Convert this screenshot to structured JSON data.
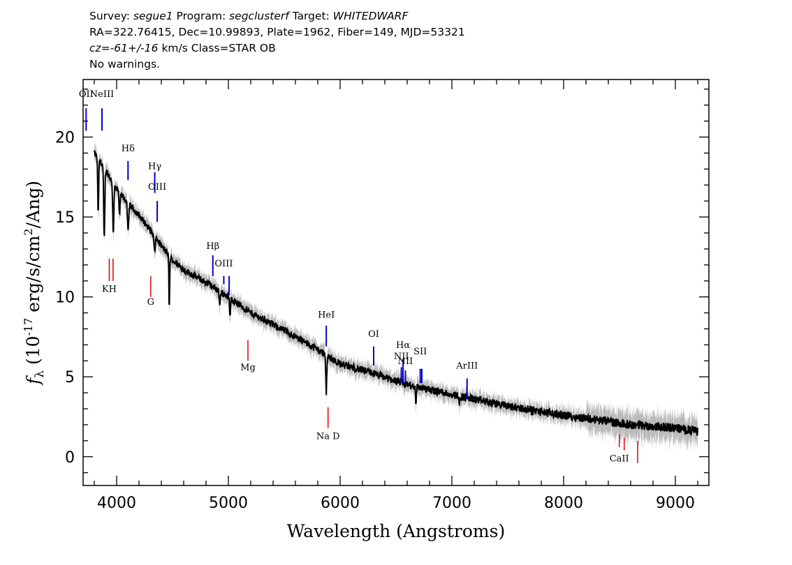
{
  "header": {
    "line1": {
      "survey_label": "Survey: ",
      "survey": "segue1",
      "program_label": " Program: ",
      "program": "segclusterf",
      "target_label": " Target: ",
      "target": "WHITEDWARF"
    },
    "line2": "RA=322.76415, Dec=10.99893, Plate=1962, Fiber=149, MJD=53321",
    "line3": {
      "cz_label": "cz",
      "cz_value": "=-61+/-16",
      "cz_rest": " km/s Class=STAR OB"
    },
    "line4": "No warnings."
  },
  "chart_data": {
    "type": "line",
    "xlabel": "Wavelength (Angstroms)",
    "ylabel": "f_λ (10^-17 erg/s/cm^2/Ang)",
    "ylabel_parts": {
      "f": "f",
      "sub": "λ",
      "a": " (10",
      "b": "-17",
      "c": " erg/s/cm",
      "d": "2",
      "e": "/Ang)"
    },
    "xlim": [
      3700,
      9300
    ],
    "ylim": [
      -1.8,
      23.6
    ],
    "x_ticks": [
      4000,
      5000,
      6000,
      7000,
      8000,
      9000
    ],
    "y_ticks": [
      0,
      5,
      10,
      15,
      20
    ],
    "x_ticklabels": [
      "4000",
      "5000",
      "6000",
      "7000",
      "8000",
      "9000"
    ],
    "y_ticklabels": [
      "0",
      "5",
      "10",
      "15",
      "20"
    ],
    "colors": {
      "flux": "#000000",
      "noise": "#bbbbbb",
      "emission": "#0000cc",
      "absorption": "#dd0000"
    },
    "continuum": {
      "x": [
        3800,
        3850,
        3900,
        3950,
        4000,
        4100,
        4200,
        4300,
        4400,
        4500,
        4600,
        4800,
        5000,
        5200,
        5500,
        5800,
        6000,
        6300,
        6600,
        7000,
        7400,
        7800,
        8200,
        8600,
        9000,
        9200
      ],
      "y": [
        19.0,
        18.5,
        18.0,
        17.3,
        16.7,
        15.9,
        15.1,
        14.2,
        13.2,
        12.3,
        11.7,
        10.9,
        10.0,
        9.0,
        7.9,
        6.7,
        5.8,
        5.2,
        4.5,
        3.9,
        3.3,
        2.8,
        2.4,
        2.0,
        1.8,
        1.6
      ]
    },
    "absorption_features": [
      {
        "x": 3835,
        "depth": 3.5,
        "width": 6
      },
      {
        "x": 3889,
        "depth": 4.5,
        "width": 7
      },
      {
        "x": 3970,
        "depth": 3.0,
        "width": 7
      },
      {
        "x": 4026,
        "depth": 1.5,
        "width": 6
      },
      {
        "x": 4102,
        "depth": 1.8,
        "width": 8
      },
      {
        "x": 4340,
        "depth": 1.0,
        "width": 8
      },
      {
        "x": 4471,
        "depth": 3.3,
        "width": 5
      },
      {
        "x": 4922,
        "depth": 0.9,
        "width": 6
      },
      {
        "x": 5015,
        "depth": 1.2,
        "width": 6
      },
      {
        "x": 5876,
        "depth": 2.4,
        "width": 6
      },
      {
        "x": 6678,
        "depth": 1.0,
        "width": 5
      },
      {
        "x": 7065,
        "depth": 0.4,
        "width": 6
      }
    ],
    "annotations": {
      "emission": [
        {
          "label": "OII",
          "x": 3727,
          "ybot": 20.4,
          "ytop": 21.8,
          "lab_y": 22.5
        },
        {
          "label": "NeIII",
          "x": 3869,
          "ybot": 20.4,
          "ytop": 21.8,
          "lab_y": 22.5
        },
        {
          "label": "Hδ",
          "x": 4102,
          "ybot": 17.3,
          "ytop": 18.5,
          "lab_y": 19.1
        },
        {
          "label": "Hγ",
          "x": 4341,
          "ybot": 16.5,
          "ytop": 17.8,
          "lab_y": 18.0
        },
        {
          "label": "OIII",
          "x": 4363,
          "ybot": 14.7,
          "ytop": 16.0,
          "lab_y": 16.7
        },
        {
          "label": "Hβ",
          "x": 4861,
          "ybot": 11.3,
          "ytop": 12.6,
          "lab_y": 13.0
        },
        {
          "label": "OIII",
          "x": 4959,
          "ybot": 10.8,
          "ytop": 11.3,
          "lab_y": 11.9
        },
        {
          "label": "",
          "x": 5007,
          "ybot": 10.1,
          "ytop": 11.3,
          "lab_y": 0
        },
        {
          "label": "HeI",
          "x": 5876,
          "ybot": 6.9,
          "ytop": 8.2,
          "lab_y": 8.7
        },
        {
          "label": "OI",
          "x": 6300,
          "ybot": 5.7,
          "ytop": 6.9,
          "lab_y": 7.5
        },
        {
          "label": "NII",
          "x": 6548,
          "ybot": 4.6,
          "ytop": 5.6,
          "lab_y": 6.1
        },
        {
          "label": "Hα",
          "x": 6563,
          "ybot": 4.7,
          "ytop": 6.1,
          "lab_y": 6.8
        },
        {
          "label": "NII",
          "x": 6584,
          "ybot": 4.6,
          "ytop": 5.4,
          "lab_y": 5.8
        },
        {
          "label": "SII",
          "x": 6717,
          "ybot": 4.6,
          "ytop": 5.5,
          "lab_y": 6.4
        },
        {
          "label": "",
          "x": 6731,
          "ybot": 4.6,
          "ytop": 5.5,
          "lab_y": 0
        },
        {
          "label": "ArIII",
          "x": 7136,
          "ybot": 3.6,
          "ytop": 4.9,
          "lab_y": 5.5
        }
      ],
      "absorption": [
        {
          "label": "KH",
          "x": 3934,
          "ybot": 11.0,
          "ytop": 12.4,
          "lab_y": 10.3
        },
        {
          "label": "",
          "x": 3968,
          "ybot": 11.0,
          "ytop": 12.4,
          "lab_y": 0
        },
        {
          "label": "G",
          "x": 4305,
          "ybot": 10.0,
          "ytop": 11.3,
          "lab_y": 9.5
        },
        {
          "label": "Mg",
          "x": 5175,
          "ybot": 6.0,
          "ytop": 7.3,
          "lab_y": 5.4
        },
        {
          "label": "Na D",
          "x": 5892,
          "ybot": 1.8,
          "ytop": 3.1,
          "lab_y": 1.1
        },
        {
          "label": "CaII",
          "x": 8498,
          "ybot": 0.6,
          "ytop": 1.4,
          "lab_y": -0.3
        },
        {
          "label": "",
          "x": 8542,
          "ybot": 0.4,
          "ytop": 1.2,
          "lab_y": 0
        },
        {
          "label": "",
          "x": 8662,
          "ybot": -0.4,
          "ytop": 1.0,
          "lab_y": 0
        }
      ]
    }
  }
}
